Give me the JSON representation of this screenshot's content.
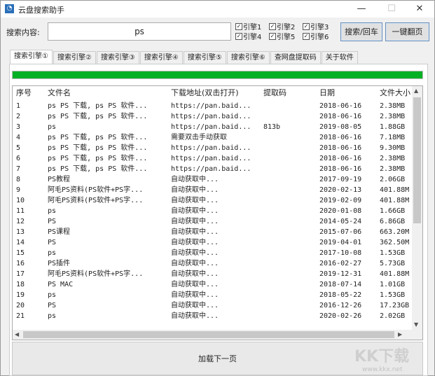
{
  "window": {
    "title": "云盘搜索助手",
    "minimize": "—",
    "maximize": "☐",
    "close": "✕",
    "accent": "#2a6fb8"
  },
  "search": {
    "label": "搜索内容:",
    "value": "ps",
    "search_button": "搜索/回车",
    "page_button": "一键翻页"
  },
  "engines": [
    {
      "label": "引擎1",
      "checked": true
    },
    {
      "label": "引擎2",
      "checked": true
    },
    {
      "label": "引擎3",
      "checked": true
    },
    {
      "label": "引擎4",
      "checked": true
    },
    {
      "label": "引擎5",
      "checked": true
    },
    {
      "label": "引擎6",
      "checked": true
    }
  ],
  "tabs": [
    "搜索引擎①",
    "搜索引擎②",
    "搜索引擎③",
    "搜索引擎④",
    "搜索引擎⑤",
    "搜索引擎⑥",
    "查网盘提取码",
    "关于软件"
  ],
  "progress": {
    "percent": 100,
    "color": "#06b025"
  },
  "table": {
    "columns": [
      "序号",
      "文件名",
      "下载地址(双击打开)",
      "提取码",
      "日期",
      "文件大小"
    ],
    "rows": [
      [
        "1",
        "ps PS 下载, ps PS 软件...",
        "https://pan.baid...",
        "",
        "2018-06-16",
        "2.38MB"
      ],
      [
        "2",
        "ps PS 下载, ps PS 软件...",
        "https://pan.baid...",
        "",
        "2018-06-16",
        "2.38MB"
      ],
      [
        "3",
        "ps",
        "https://pan.baid...",
        "813b",
        "2019-08-05",
        "1.88GB"
      ],
      [
        "4",
        "ps PS 下载, ps PS 软件...",
        "需要双击手动获取",
        "",
        "2018-06-16",
        "7.18MB"
      ],
      [
        "5",
        "ps PS 下载, ps PS 软件...",
        "https://pan.baid...",
        "",
        "2018-06-16",
        "9.30MB"
      ],
      [
        "6",
        "ps PS 下载, ps PS 软件...",
        "https://pan.baid...",
        "",
        "2018-06-16",
        "2.38MB"
      ],
      [
        "7",
        "ps PS 下载, ps PS 软件...",
        "https://pan.baid...",
        "",
        "2018-06-16",
        "2.38MB"
      ],
      [
        "8",
        "PS教程",
        "自动获取中...",
        "",
        "2017-09-19",
        "2.06GB"
      ],
      [
        "9",
        "阿毛PS资料(PS软件+PS字...",
        "自动获取中...",
        "",
        "2020-02-13",
        "401.88M"
      ],
      [
        "10",
        "阿毛PS资料(PS软件+PS字...",
        "自动获取中...",
        "",
        "2019-02-09",
        "401.88M"
      ],
      [
        "11",
        "ps",
        "自动获取中...",
        "",
        "2020-01-08",
        "1.66GB"
      ],
      [
        "12",
        "PS",
        "自动获取中...",
        "",
        "2014-05-24",
        "6.86GB"
      ],
      [
        "13",
        "PS课程",
        "自动获取中...",
        "",
        "2015-07-06",
        "663.20M"
      ],
      [
        "14",
        "PS",
        "自动获取中...",
        "",
        "2019-04-01",
        "362.50M"
      ],
      [
        "15",
        "ps",
        "自动获取中...",
        "",
        "2017-10-08",
        "1.53GB"
      ],
      [
        "16",
        "PS插件",
        "自动获取中...",
        "",
        "2016-02-27",
        "5.73GB"
      ],
      [
        "17",
        "阿毛PS资料(PS软件+PS字...",
        "自动获取中...",
        "",
        "2019-12-31",
        "401.88M"
      ],
      [
        "18",
        "PS MAC",
        "自动获取中...",
        "",
        "2018-07-14",
        "1.01GB"
      ],
      [
        "19",
        "ps",
        "自动获取中...",
        "",
        "2018-05-22",
        "1.53GB"
      ],
      [
        "20",
        "PS",
        "自动获取中...",
        "",
        "2016-12-26",
        "17.23GB"
      ],
      [
        "21",
        "ps",
        "自动获取中...",
        "",
        "2020-02-26",
        "2.02GB"
      ]
    ]
  },
  "load_more": "加载下一页",
  "watermark": {
    "logo": "KK下载",
    "url": "www.kkx.net"
  }
}
